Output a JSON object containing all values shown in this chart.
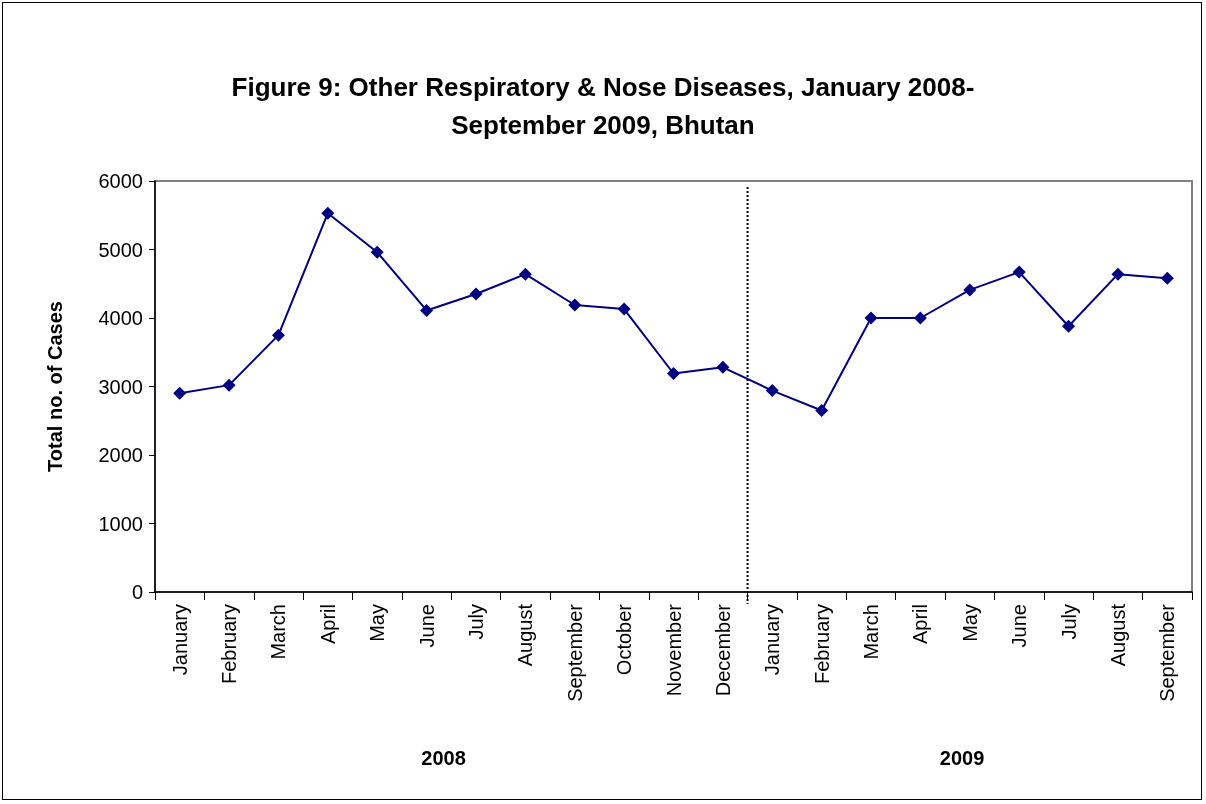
{
  "chart_data": {
    "type": "line",
    "title": "Figure 9: Other Respiratory & Nose Diseases, January 2008-September 2009, Bhutan",
    "ylabel": "Total no. of Cases",
    "categories": [
      "January",
      "February",
      "March",
      "April",
      "May",
      "June",
      "July",
      "August",
      "September",
      "October",
      "November",
      "December",
      "January",
      "February",
      "March",
      "April",
      "May",
      "June",
      "July",
      "August",
      "September"
    ],
    "series": [
      {
        "color": "#000080",
        "values": [
          2900,
          3020,
          3750,
          5530,
          4960,
          4110,
          4350,
          4640,
          4190,
          4130,
          3190,
          3280,
          2940,
          2650,
          4000,
          4000,
          4410,
          4670,
          3880,
          4640,
          4580
        ]
      }
    ],
    "ylim": [
      0,
      6000
    ],
    "yticks": [
      0,
      1000,
      2000,
      3000,
      4000,
      5000,
      6000
    ],
    "annotations": [
      "2008",
      "2009"
    ],
    "marker": "diamond",
    "grid": false
  }
}
